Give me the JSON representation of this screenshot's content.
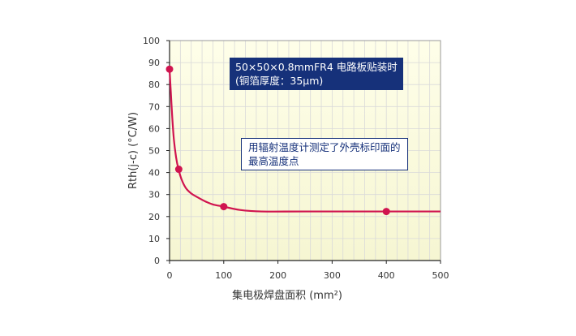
{
  "chart_data": {
    "type": "line",
    "xlabel": "集电极焊盘面积 (mm²)",
    "ylabel": "Rth(j-c) (°C/W)",
    "xlim": [
      0,
      500
    ],
    "ylim": [
      0,
      100
    ],
    "x_ticks": [
      "0",
      "100",
      "200",
      "300",
      "400",
      "500"
    ],
    "y_ticks": [
      "0",
      "10",
      "20",
      "30",
      "40",
      "50",
      "60",
      "70",
      "80",
      "90",
      "100"
    ],
    "grid": true,
    "series": [
      {
        "curve": [
          [
            0,
            87
          ],
          [
            2,
            78
          ],
          [
            5,
            65
          ],
          [
            8,
            55
          ],
          [
            12,
            47
          ],
          [
            16,
            42
          ],
          [
            22,
            37
          ],
          [
            30,
            33
          ],
          [
            40,
            30.5
          ],
          [
            50,
            29
          ],
          [
            65,
            27
          ],
          [
            80,
            25.5
          ],
          [
            100,
            24.5
          ],
          [
            130,
            23
          ],
          [
            170,
            22.3
          ],
          [
            250,
            22.3
          ],
          [
            400,
            22.3
          ],
          [
            500,
            22.3
          ]
        ],
        "markers": [
          [
            0,
            87
          ],
          [
            17,
            41.5
          ],
          [
            100,
            24.5
          ],
          [
            400,
            22.3
          ]
        ]
      }
    ],
    "annotations": [
      {
        "lines": [
          "50×50×0.8mmFR4 电路板贴装时",
          "(铜箔厚度：35μm)"
        ]
      },
      {
        "lines": [
          "用辐射温度计测定了外壳标印面的",
          "最高温度点"
        ]
      }
    ],
    "colors": {
      "series": "#d0144f",
      "background_top": "#fefee9",
      "background_bottom": "#f6f6d2",
      "grid": "#d9d9d9",
      "annotation_dark": "#16317a"
    }
  }
}
